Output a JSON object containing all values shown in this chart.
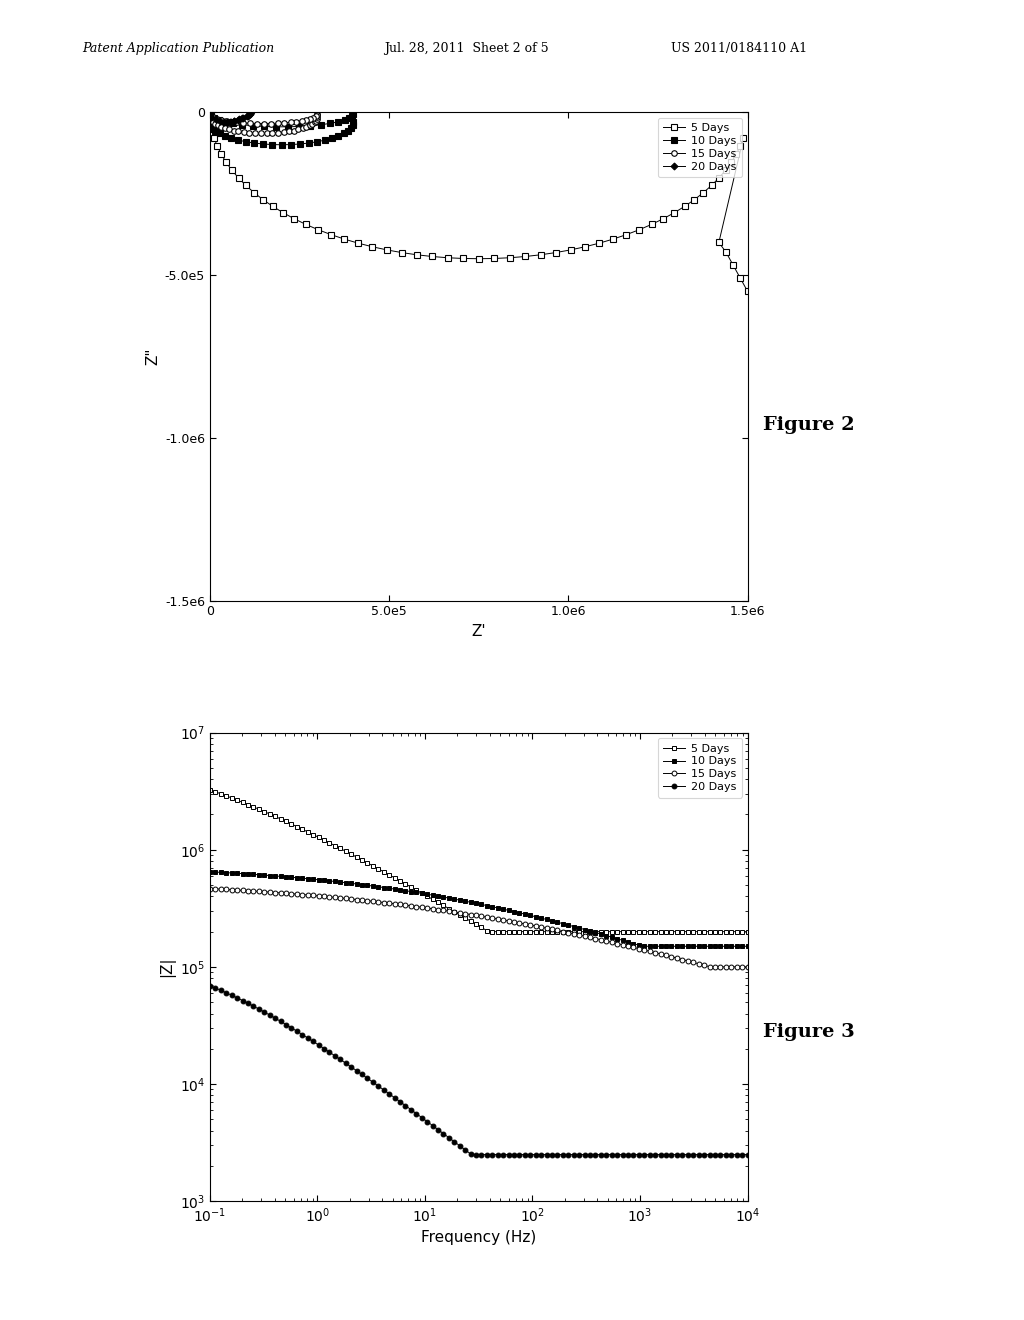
{
  "header_left": "Patent Application Publication",
  "header_mid": "Jul. 28, 2011  Sheet 2 of 5",
  "header_right": "US 2011/0184110 A1",
  "fig2_title": "Figure 2",
  "fig3_title": "Figure 3",
  "fig2_xlabel": "Z'",
  "fig2_ylabel": "Z\"",
  "fig3_xlabel": "Frequency (Hz)",
  "fig3_ylabel": "|Z|",
  "fig2_xlim": [
    0,
    1500000.0
  ],
  "fig2_ylim": [
    -1500000.0,
    0
  ],
  "fig2_xticks": [
    0,
    500000.0,
    1000000.0,
    1500000.0
  ],
  "fig2_yticks": [
    -1500000.0,
    -1000000.0,
    -500000.0,
    0
  ],
  "fig2_xtick_labels": [
    "0",
    "5.0e5",
    "1.0e6",
    "1.5e6"
  ],
  "fig2_ytick_labels": [
    "-1.5e6",
    "-1.0e6",
    "-5.0e5",
    "0"
  ],
  "legend_labels": [
    "5 Days",
    "10 Days",
    "15 Days",
    "20 Days"
  ],
  "bg_color": "#ffffff",
  "line_color": "#000000"
}
